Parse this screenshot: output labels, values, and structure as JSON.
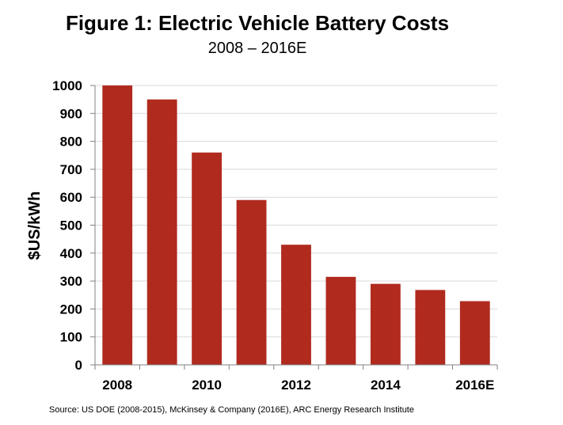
{
  "chart_data": {
    "type": "bar",
    "title": "Figure 1: Electric Vehicle Battery Costs",
    "subtitle": "2008 – 2016E",
    "xlabel": "",
    "ylabel": "$US/kWh",
    "categories": [
      "2008",
      "2009",
      "2010",
      "2011",
      "2012",
      "2013",
      "2014",
      "2015",
      "2016E"
    ],
    "x_tick_labels": [
      "2008",
      "",
      "2010",
      "",
      "2012",
      "",
      "2014",
      "",
      "2016E"
    ],
    "values": [
      1000,
      950,
      760,
      590,
      430,
      315,
      290,
      268,
      228
    ],
    "ylim": [
      0,
      1000
    ],
    "yticks": [
      0,
      100,
      200,
      300,
      400,
      500,
      600,
      700,
      800,
      900,
      1000
    ],
    "grid": true,
    "legend": "none",
    "bar_color": "#B02A1E",
    "source": "Source: US DOE (2008-2015), McKinsey & Company (2016E), ARC Energy Research Institute"
  }
}
